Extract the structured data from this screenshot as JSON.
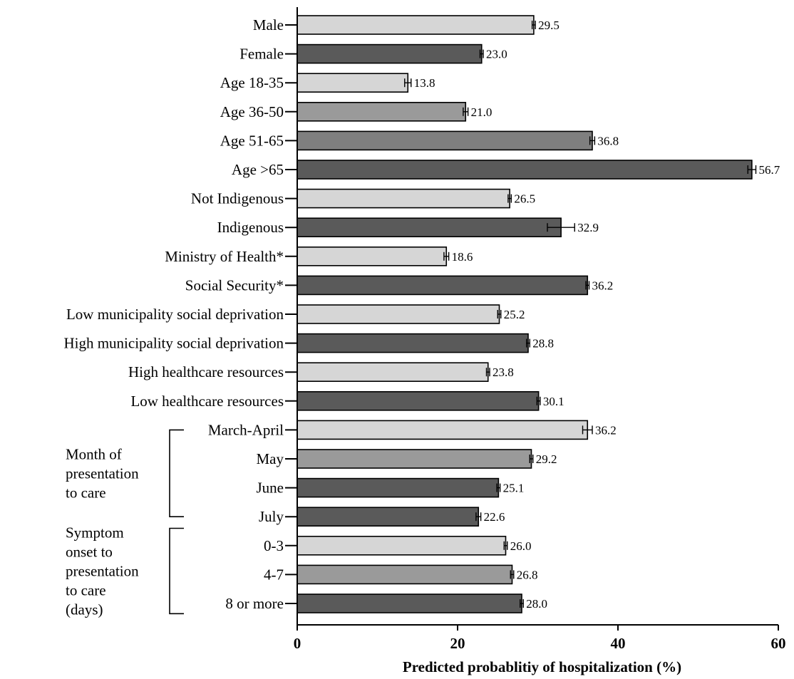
{
  "chart_data": {
    "type": "bar",
    "orientation": "horizontal",
    "xlabel": "Predicted probablitiy of hospitalization (%)",
    "ylabel": "",
    "xlim": [
      0,
      60
    ],
    "xticks": [
      "0",
      "20",
      "40",
      "60"
    ],
    "grid": false,
    "categories": [
      "Male",
      "Female",
      "Age 18-35",
      "Age 36-50",
      "Age 51-65",
      "Age >65",
      "Not Indigenous",
      "Indigenous",
      "Ministry of Health*",
      "Social Security*",
      "Low municipality social deprivation",
      "High municipality social deprivation",
      "High healthcare resources",
      "Low healthcare resources",
      "March-April",
      "May",
      "June",
      "July",
      "0-3",
      "4-7",
      "8 or more"
    ],
    "values": [
      29.5,
      23.0,
      13.8,
      21.0,
      36.8,
      56.7,
      26.5,
      32.9,
      18.6,
      36.2,
      25.2,
      28.8,
      23.8,
      30.1,
      36.2,
      29.2,
      25.1,
      22.6,
      26.0,
      26.8,
      28.0
    ],
    "value_labels": [
      "29.5",
      "23.0",
      "13.8",
      "21.0",
      "36.8",
      "56.7",
      "26.5",
      "32.9",
      "18.6",
      "36.2",
      "25.2",
      "28.8",
      "23.8",
      "30.1",
      "36.2",
      "29.2",
      "25.1",
      "22.6",
      "26.0",
      "26.8",
      "28.0"
    ],
    "error_low": [
      29.3,
      22.8,
      13.4,
      20.7,
      36.5,
      56.2,
      26.3,
      31.2,
      18.3,
      36.0,
      25.0,
      28.6,
      23.6,
      29.9,
      35.6,
      29.0,
      24.9,
      22.3,
      25.8,
      26.6,
      27.8
    ],
    "error_high": [
      29.7,
      23.2,
      14.2,
      21.3,
      37.1,
      57.2,
      26.7,
      34.6,
      18.9,
      36.4,
      25.4,
      29.0,
      24.0,
      30.3,
      36.8,
      29.4,
      25.3,
      22.9,
      26.2,
      27.0,
      28.2
    ],
    "bar_colors": [
      "#d6d6d6",
      "#5a5a5a",
      "#d6d6d6",
      "#9a9a9a",
      "#7f7f7f",
      "#5a5a5a",
      "#d6d6d6",
      "#5a5a5a",
      "#d6d6d6",
      "#5a5a5a",
      "#d6d6d6",
      "#5a5a5a",
      "#d6d6d6",
      "#5a5a5a",
      "#d6d6d6",
      "#9a9a9a",
      "#5a5a5a",
      "#5a5a5a",
      "#d6d6d6",
      "#9a9a9a",
      "#5a5a5a"
    ],
    "groups": [
      {
        "lines": [
          "Month of",
          "presentation",
          "to care"
        ],
        "start": 14,
        "end": 17
      },
      {
        "lines": [
          "Symptom",
          "onset to",
          "presentation",
          "to care",
          "(days)"
        ],
        "start": 18,
        "end": 20
      }
    ]
  }
}
